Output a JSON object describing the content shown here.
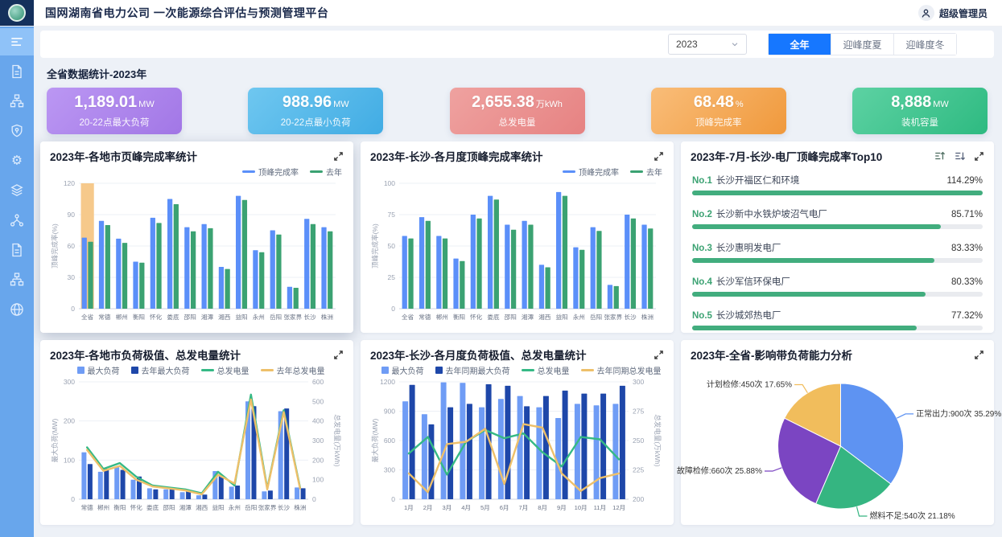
{
  "header": {
    "title": "国网湖南省电力公司 一次能源综合评估与预测管理平台",
    "user": "超级管理员"
  },
  "sidebar": {
    "items": [
      "menu-icon",
      "document-icon",
      "org-chart-icon",
      "shield-icon",
      "gear-icon",
      "layers-icon",
      "share-nodes-icon",
      "document-icon",
      "org-chart-icon",
      "globe-icon"
    ],
    "active_index": 0
  },
  "controls": {
    "year_select": "2023",
    "buttons": [
      {
        "label": "全年",
        "active": true
      },
      {
        "label": "迎峰度夏",
        "active": false
      },
      {
        "label": "迎峰度冬",
        "active": false
      }
    ]
  },
  "stats": {
    "section_title": "全省数据统计-2023年",
    "cards": [
      {
        "value": "1,189.01",
        "unit": "MW",
        "label": "20-22点最大负荷",
        "color": "#a97ae9"
      },
      {
        "value": "988.96",
        "unit": "MW",
        "label": "20-22点最小负荷",
        "color": "#49b1e6"
      },
      {
        "value": "2,655.38",
        "unit": "万kWh",
        "label": "总发电量",
        "color": "#e68888"
      },
      {
        "value": "68.48",
        "unit": "%",
        "label": "顶峰完成率",
        "color": "#f19f44"
      },
      {
        "value": "8,888",
        "unit": "MW",
        "label": "装机容量",
        "color": "#35bd85"
      }
    ]
  },
  "chart_data": [
    {
      "id": "city-peak-rate",
      "type": "bar",
      "title": "2023年-各地市页峰完成率统计",
      "ylabel": "顶峰完成率(%)",
      "ylim": [
        0,
        120
      ],
      "yticks": [
        0,
        30,
        60,
        90,
        120
      ],
      "categories": [
        "全省",
        "常德",
        "郴州",
        "衡阳",
        "怀化",
        "娄底",
        "邵阳",
        "湘潭",
        "湘西",
        "益阳",
        "永州",
        "岳阳",
        "张家界",
        "长沙",
        "株洲"
      ],
      "highlight": {
        "index": 0,
        "color": "#f6c98b"
      },
      "series": [
        {
          "name": "顶峰完成率",
          "color": "#5b8ff9",
          "values": [
            68,
            84,
            67,
            45,
            87,
            105,
            78,
            81,
            40,
            108,
            56,
            75,
            21,
            86,
            78
          ]
        },
        {
          "name": "去年",
          "color": "#3ba272",
          "values": [
            64,
            80,
            63,
            44,
            82,
            100,
            74,
            77,
            38,
            104,
            54,
            71,
            20,
            81,
            74
          ]
        }
      ]
    },
    {
      "id": "changsha-month-peak-rate",
      "type": "bar",
      "title": "2023年-长沙-各月度顶峰完成率统计",
      "ylabel": "顶峰完成率(%)",
      "ylim": [
        0,
        100
      ],
      "yticks": [
        0,
        25,
        50,
        75,
        100
      ],
      "categories": [
        "全省",
        "常德",
        "郴州",
        "衡阳",
        "怀化",
        "娄底",
        "邵阳",
        "湘潭",
        "湘西",
        "益阳",
        "永州",
        "岳阳",
        "张家界",
        "长沙",
        "株洲"
      ],
      "series": [
        {
          "name": "顶峰完成率",
          "color": "#5b8ff9",
          "values": [
            58,
            73,
            58,
            40,
            75,
            90,
            67,
            70,
            35,
            93,
            49,
            65,
            19,
            75,
            67
          ]
        },
        {
          "name": "去年",
          "color": "#3ba272",
          "values": [
            56,
            70,
            56,
            38,
            72,
            87,
            63,
            67,
            33,
            90,
            47,
            62,
            18,
            72,
            64
          ]
        }
      ]
    },
    {
      "id": "plant-top10",
      "type": "table",
      "title": "2023年-7月-长沙-电厂顶峰完成率Top10",
      "items": [
        {
          "rank": "No.1",
          "name": "长沙开福区仁和环境",
          "value": 114.29,
          "label": "114.29%"
        },
        {
          "rank": "No.2",
          "name": "长沙新中水铁炉坡沼气电厂",
          "value": 85.71,
          "label": "85.71%"
        },
        {
          "rank": "No.3",
          "name": "长沙惠明发电厂",
          "value": 83.33,
          "label": "83.33%"
        },
        {
          "rank": "No.4",
          "name": "长沙军信环保电厂",
          "value": 80.33,
          "label": "80.33%"
        },
        {
          "rank": "No.5",
          "name": "长沙城郊热电厂",
          "value": 77.32,
          "label": "77.32%"
        }
      ]
    },
    {
      "id": "city-load-generation",
      "type": "bar+line",
      "title": "2023年-各地市负荷极值、总发电量统计",
      "left_axis": {
        "label": "最大负荷(MW)",
        "lim": [
          0,
          300
        ],
        "ticks": [
          0,
          100,
          200,
          300
        ]
      },
      "right_axis": {
        "label": "总发电量(万kWh)",
        "lim": [
          0,
          600
        ],
        "ticks": [
          0,
          100,
          200,
          300,
          400,
          500,
          600
        ]
      },
      "categories": [
        "常德",
        "郴州",
        "衡阳",
        "怀化",
        "娄底",
        "邵阳",
        "湘潭",
        "湘西",
        "益阳",
        "永州",
        "岳阳",
        "张家界",
        "长沙",
        "株洲"
      ],
      "bar_series": [
        {
          "name": "最大负荷",
          "color": "#6f9cf5",
          "values": [
            120,
            70,
            82,
            50,
            28,
            25,
            18,
            10,
            72,
            32,
            250,
            20,
            225,
            30
          ]
        },
        {
          "name": "去年最大负荷",
          "color": "#1e47a9",
          "values": [
            90,
            78,
            75,
            58,
            25,
            28,
            22,
            12,
            60,
            35,
            238,
            22,
            232,
            28
          ]
        }
      ],
      "line_series": [
        {
          "name": "总发电量",
          "color": "#35b985",
          "values": [
            265,
            155,
            185,
            115,
            70,
            60,
            50,
            30,
            140,
            70,
            535,
            55,
            455,
            60
          ]
        },
        {
          "name": "去年总发电量",
          "color": "#eec06a",
          "values": [
            252,
            145,
            170,
            100,
            65,
            55,
            45,
            25,
            125,
            80,
            510,
            50,
            445,
            55
          ]
        }
      ]
    },
    {
      "id": "changsha-month-load-generation",
      "type": "bar+line",
      "title": "2023年-长沙-各月度负荷极值、总发电量统计",
      "left_axis": {
        "label": "最大负荷(MW)",
        "lim": [
          0,
          1200
        ],
        "ticks": [
          0,
          300,
          600,
          900,
          1200
        ]
      },
      "right_axis": {
        "label": "总发电量(万kWh)",
        "lim": [
          200,
          300
        ],
        "ticks": [
          200,
          225,
          250,
          275,
          300
        ]
      },
      "categories": [
        "1月",
        "2月",
        "3月",
        "4月",
        "5月",
        "6月",
        "7月",
        "8月",
        "9月",
        "10月",
        "11月",
        "12月"
      ],
      "bar_series": [
        {
          "name": "最大负荷",
          "color": "#6f9cf5",
          "values": [
            1000,
            870,
            1195,
            1190,
            940,
            1025,
            1055,
            940,
            830,
            975,
            960,
            975
          ]
        },
        {
          "name": "去年同期最大负荷",
          "color": "#1e47a9",
          "values": [
            1170,
            765,
            940,
            975,
            1175,
            1160,
            950,
            1055,
            1110,
            1080,
            1080,
            1160
          ]
        }
      ],
      "line_series": [
        {
          "name": "总发电量",
          "color": "#35b985",
          "values": [
            239,
            253,
            221,
            249,
            259,
            252,
            256,
            240,
            228,
            253,
            251,
            234
          ]
        },
        {
          "name": "去年同期总发电量",
          "color": "#eec06a",
          "values": [
            222,
            206,
            247,
            249,
            260,
            213,
            264,
            261,
            222,
            207,
            218,
            222
          ]
        }
      ]
    },
    {
      "id": "load-capacity-analysis",
      "type": "pie",
      "title": "2023年-全省-影响带负荷能力分析",
      "slices": [
        {
          "name": "正常出力",
          "times": "900次",
          "pct": 35.29,
          "label": "正常出力:900次  35.29%",
          "color": "#5e93f2"
        },
        {
          "name": "燃料不足",
          "times": "540次",
          "pct": 21.18,
          "label": "燃料不足:540次  21.18%",
          "color": "#35b581"
        },
        {
          "name": "故障检修",
          "times": "660次",
          "pct": 25.88,
          "label": "故障检修:660次  25.88%",
          "color": "#7b45c2"
        },
        {
          "name": "计划检修",
          "times": "450次",
          "pct": 17.65,
          "label": "计划检修:450次  17.65%",
          "color": "#f1bd5c"
        }
      ],
      "start_angle_deg": 0,
      "clockwise": true
    }
  ]
}
